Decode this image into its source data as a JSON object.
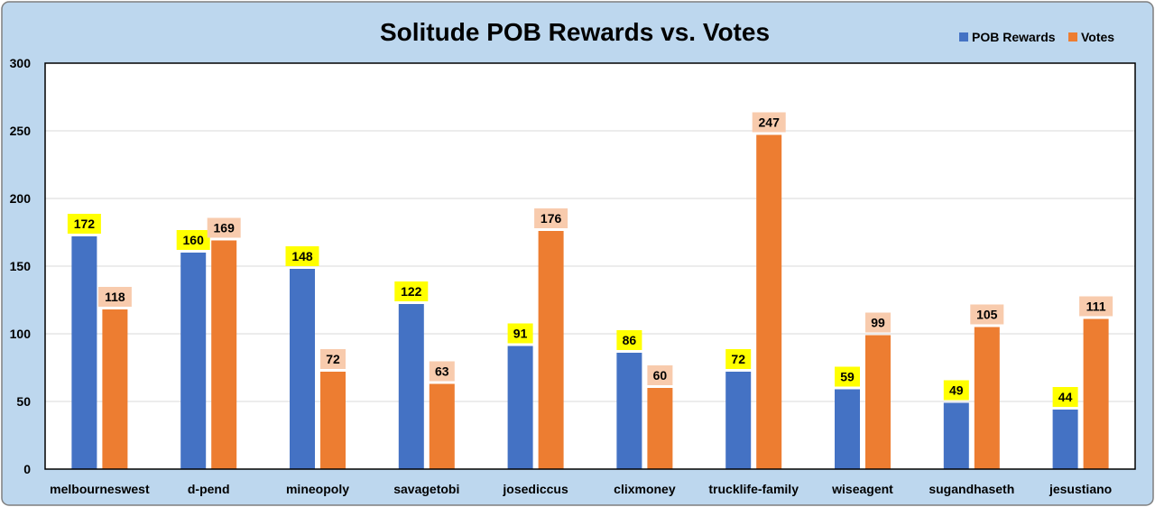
{
  "chart_data": {
    "type": "bar",
    "title": "Solitude POB Rewards vs. Votes",
    "categories": [
      "melbourneswest",
      "d-pend",
      "mineopoly",
      "savagetobi",
      "josediccus",
      "clixmoney",
      "trucklife-family",
      "wiseagent",
      "sugandhaseth",
      "jesustiano"
    ],
    "series": [
      {
        "name": "POB Rewards",
        "color": "#4472C4",
        "label_bg": "#FFFF00",
        "values": [
          172,
          160,
          148,
          122,
          91,
          86,
          72,
          59,
          49,
          44
        ]
      },
      {
        "name": "Votes",
        "color": "#ED7D31",
        "label_bg": "#F8CBAD",
        "values": [
          118,
          169,
          72,
          63,
          176,
          60,
          247,
          99,
          105,
          111
        ]
      }
    ],
    "ylim": [
      0,
      300
    ],
    "yticks": [
      "0",
      "50",
      "100",
      "150",
      "200",
      "250",
      "300"
    ],
    "grid": true,
    "legend_position": "top-right",
    "colors": {
      "outer_background": "#BDD7EE",
      "plot_background": "#FFFFFF",
      "gridline": "#D9D9D9"
    }
  }
}
